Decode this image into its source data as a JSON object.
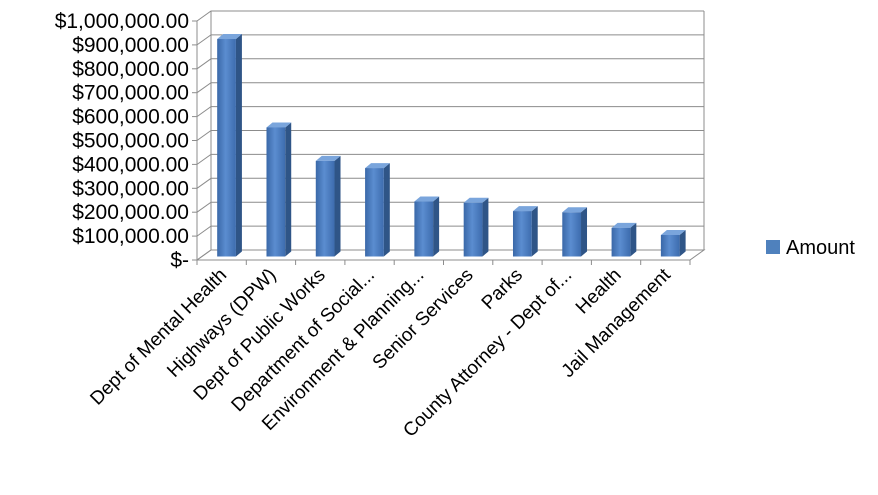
{
  "chart_data": {
    "type": "bar",
    "categories": [
      "Dept of Mental Health",
      "Highways (DPW)",
      "Dept of Public Works",
      "Department of Social...",
      "Environment & Planning...",
      "Senior Services",
      "Parks",
      "County Attorney - Dept of...",
      "Health",
      "Jail Management"
    ],
    "series": [
      {
        "name": "Amount",
        "color": "#4F81BD",
        "values": [
          910000,
          540000,
          400000,
          370000,
          230000,
          225000,
          190000,
          185000,
          120000,
          90000
        ]
      }
    ],
    "y_ticks": [
      {
        "value": 0,
        "label": "$-"
      },
      {
        "value": 100000,
        "label": "$100,000.00"
      },
      {
        "value": 200000,
        "label": "$200,000.00"
      },
      {
        "value": 300000,
        "label": "$300,000.00"
      },
      {
        "value": 400000,
        "label": "$400,000.00"
      },
      {
        "value": 500000,
        "label": "$500,000.00"
      },
      {
        "value": 600000,
        "label": "$600,000.00"
      },
      {
        "value": 700000,
        "label": "$700,000.00"
      },
      {
        "value": 800000,
        "label": "$800,000.00"
      },
      {
        "value": 900000,
        "label": "$900,000.00"
      },
      {
        "value": 1000000,
        "label": "$1,000,000.00"
      }
    ],
    "ylim": [
      0,
      1000000
    ],
    "title": "",
    "xlabel": "",
    "ylabel": "",
    "grid": true,
    "legend": {
      "position": "right",
      "entries": [
        "Amount"
      ]
    },
    "style": "3d-column"
  }
}
